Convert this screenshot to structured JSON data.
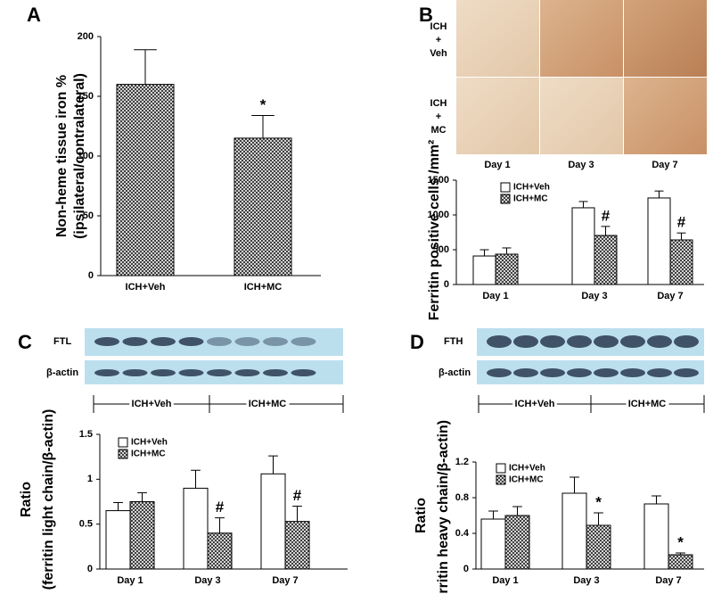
{
  "chart_data": [
    {
      "type": "bar",
      "panel": "A",
      "ylabel": [
        "Non-heme tissue iron %",
        "(ipsilateral/contralateral)"
      ],
      "categories": [
        "ICH+Veh",
        "ICH+MC"
      ],
      "values": [
        160,
        115
      ],
      "errors": [
        29,
        19
      ],
      "annotations": [
        null,
        "*"
      ],
      "fill": "hatch",
      "ylim": [
        0,
        200
      ],
      "yticks": [
        0,
        50,
        100,
        150,
        200
      ]
    },
    {
      "type": "bar",
      "panel": "B",
      "ylabel": [
        "Ferritin positive cells /mm²"
      ],
      "micrograph": {
        "rows": [
          [
            "ICH",
            "+",
            "Veh"
          ],
          [
            "ICH",
            "+",
            "MC"
          ]
        ],
        "columns": [
          "Day 1",
          "Day 3",
          "Day 7"
        ]
      },
      "categories": [
        "Day 1",
        "Day 3",
        "Day 7"
      ],
      "series": [
        {
          "name": "ICH+Veh",
          "fill": "white",
          "values": [
            410,
            1103,
            1244
          ],
          "errors": [
            90,
            90,
            100
          ],
          "annotations": [
            null,
            null,
            null
          ]
        },
        {
          "name": "ICH+MC",
          "fill": "hatch",
          "values": [
            436,
            705,
            641
          ],
          "errors": [
            90,
            130,
            100
          ],
          "annotations": [
            null,
            "#",
            "#"
          ]
        }
      ],
      "ylim": [
        0,
        1500
      ],
      "yticks": [
        0,
        500,
        1000,
        1500
      ]
    },
    {
      "type": "bar",
      "panel": "C",
      "ylabel": [
        "Ratio",
        "(ferritin light chain/β-actin)"
      ],
      "blot": {
        "rows": [
          "FTL",
          "β-actin"
        ],
        "groups": [
          "ICH+Veh",
          "ICH+MC"
        ]
      },
      "categories": [
        "Day 1",
        "Day 3",
        "Day 7"
      ],
      "series": [
        {
          "name": "ICH+Veh",
          "fill": "white",
          "values": [
            0.65,
            0.9,
            1.06
          ],
          "errors": [
            0.09,
            0.2,
            0.2
          ],
          "annotations": [
            null,
            null,
            null
          ]
        },
        {
          "name": "ICH+MC",
          "fill": "hatch",
          "values": [
            0.75,
            0.4,
            0.53
          ],
          "errors": [
            0.1,
            0.17,
            0.17
          ],
          "annotations": [
            null,
            "#",
            "#"
          ]
        }
      ],
      "ylim": [
        0,
        1.5
      ],
      "yticks": [
        0,
        0.5,
        1,
        1.5
      ]
    },
    {
      "type": "bar",
      "panel": "D",
      "ylabel": [
        "Ratio",
        "(ferritin heavy chain/β-actin)"
      ],
      "blot": {
        "rows": [
          "FTH",
          "β-actin"
        ],
        "groups": [
          "ICH+Veh",
          "ICH+MC"
        ]
      },
      "categories": [
        "Day 1",
        "Day 3",
        "Day 7"
      ],
      "series": [
        {
          "name": "ICH+Veh",
          "fill": "white",
          "values": [
            0.56,
            0.85,
            0.73
          ],
          "errors": [
            0.09,
            0.18,
            0.09
          ],
          "annotations": [
            null,
            null,
            null
          ]
        },
        {
          "name": "ICH+MC",
          "fill": "hatch",
          "values": [
            0.6,
            0.49,
            0.16
          ],
          "errors": [
            0.1,
            0.14,
            0.02
          ],
          "annotations": [
            null,
            "*",
            "*"
          ]
        }
      ],
      "ylim": [
        0,
        1.2
      ],
      "yticks": [
        0,
        0.4,
        0.8,
        1.2
      ]
    }
  ]
}
